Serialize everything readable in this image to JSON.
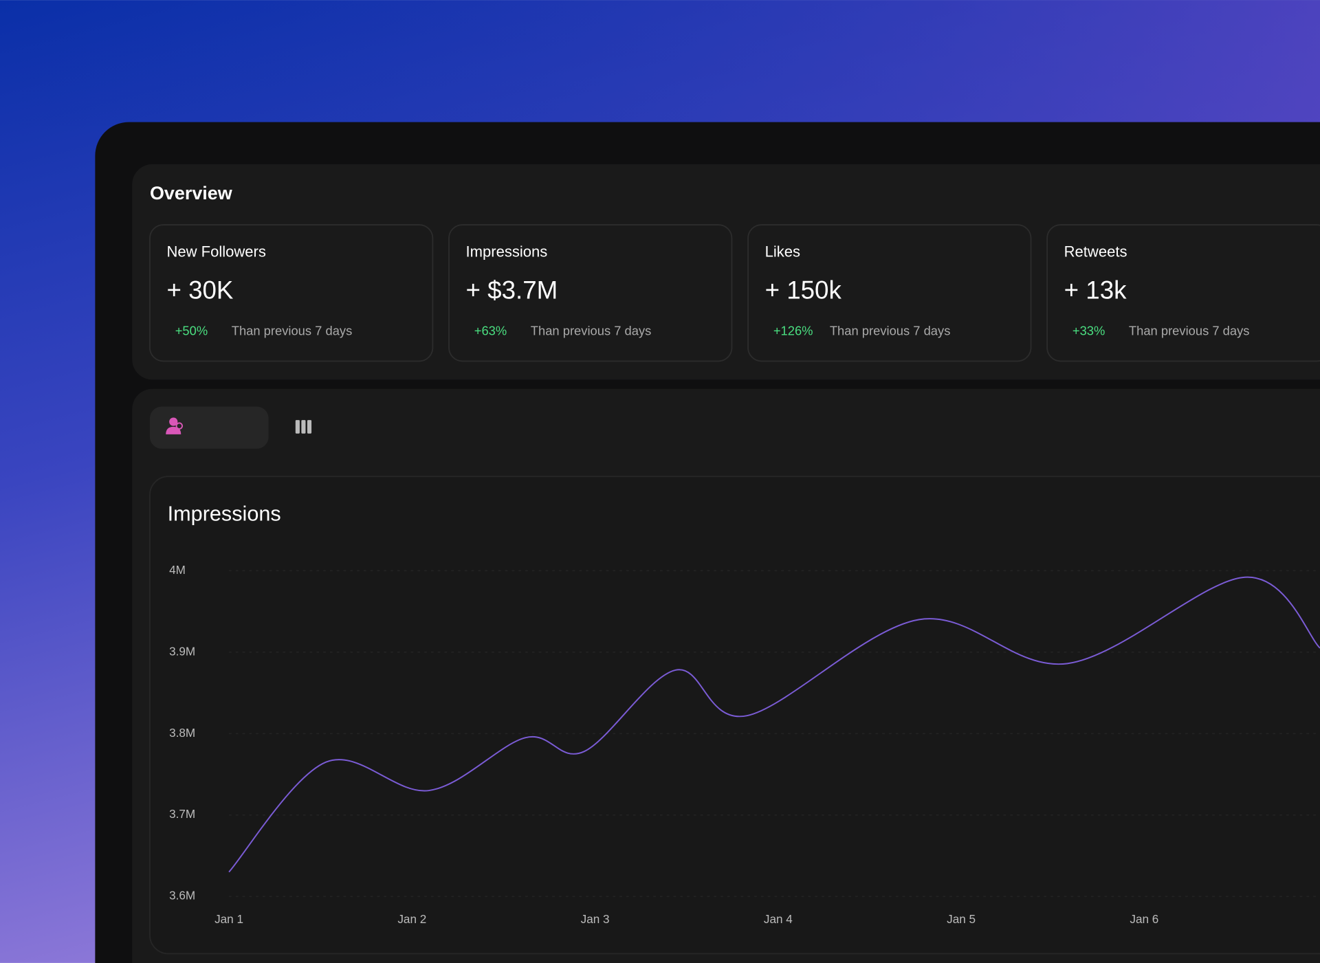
{
  "header": {
    "title": "Overview"
  },
  "cards": [
    {
      "label": "New Followers",
      "value": "+ 30K",
      "change": "+50%",
      "note": "Than previous 7 days"
    },
    {
      "label": "Impressions",
      "value": "+ $3.7M",
      "change": "+63%",
      "note": "Than previous 7 days"
    },
    {
      "label": "Likes",
      "value": "+ 150k",
      "change": "+126%",
      "note": "Than previous 7 days"
    },
    {
      "label": "Retweets",
      "value": "+ 13k",
      "change": "+33%",
      "note": "Than previous 7 days"
    }
  ],
  "chart_data": {
    "type": "line",
    "title": "Impressions",
    "x": [
      0,
      0.53,
      1.09,
      1.62,
      1.94,
      2.44,
      2.83,
      3.77,
      4.58,
      5.55,
      5.96
    ],
    "values": [
      3.63,
      3.765,
      3.73,
      3.795,
      3.778,
      3.878,
      3.822,
      3.94,
      3.886,
      3.992,
      3.905
    ],
    "color": "#7b5cd6",
    "xlim": [
      0,
      5.96
    ],
    "xticks": [
      {
        "value": 0,
        "label": "Jan 1"
      },
      {
        "value": 1,
        "label": "Jan 2"
      },
      {
        "value": 2,
        "label": "Jan 3"
      },
      {
        "value": 3,
        "label": "Jan 4"
      },
      {
        "value": 4,
        "label": "Jan 5"
      },
      {
        "value": 5,
        "label": "Jan 6"
      }
    ],
    "ylim": [
      3.6,
      4
    ],
    "yticks": [
      {
        "value": 3.6,
        "label": "3.6M"
      },
      {
        "value": 3.7,
        "label": "3.7M"
      },
      {
        "value": 3.8,
        "label": "3.8M"
      },
      {
        "value": 3.9,
        "label": "3.9M"
      },
      {
        "value": 4,
        "label": "4M"
      }
    ],
    "grid": true
  }
}
